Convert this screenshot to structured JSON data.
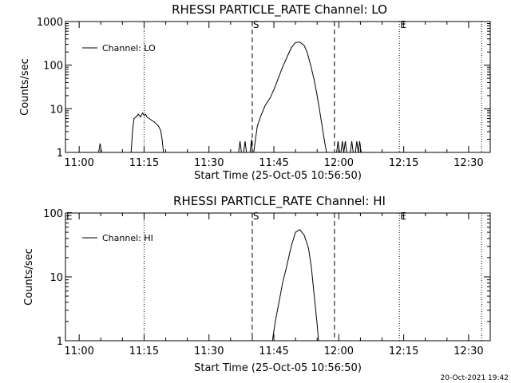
{
  "footer": {
    "timestamp": "20-Oct-2021 19:42"
  },
  "chart_data": [
    {
      "type": "line",
      "title": "RHESSI  PARTICLE_RATE  Channel: LO",
      "xlabel": "Start Time (25-Oct-05 10:56:50)",
      "ylabel": "Counts/sec",
      "yscale": "log",
      "ylim": [
        1,
        1000
      ],
      "xlim": [
        "10:56:50",
        "12:35:00"
      ],
      "xticks": [
        "11:00",
        "11:15",
        "11:30",
        "11:45",
        "12:00",
        "12:15",
        "12:30"
      ],
      "yticks": [
        "1",
        "10",
        "100",
        "1000"
      ],
      "legend": {
        "position": "top-left",
        "entries": [
          "Channel: LO"
        ]
      },
      "vlines": [
        {
          "x": "11:15",
          "style": "dotted",
          "label": ""
        },
        {
          "x": "11:40",
          "style": "dashed",
          "label": "S"
        },
        {
          "x": "11:59",
          "style": "dashed",
          "label": ""
        },
        {
          "x": "12:14",
          "style": "dotted",
          "label": "E"
        },
        {
          "x": "12:33",
          "style": "dotted",
          "label": ""
        }
      ],
      "series": [
        {
          "name": "Channel: LO",
          "segments": [
            [
              [
                "11:04:30",
                1
              ],
              [
                "11:04:50",
                1.6
              ],
              [
                "11:05:10",
                1
              ]
            ],
            [
              [
                "11:12:00",
                1
              ],
              [
                "11:12:20",
                3
              ],
              [
                "11:12:40",
                6
              ],
              [
                "11:13:10",
                6.5
              ],
              [
                "11:13:40",
                7.5
              ],
              [
                "11:14:10",
                6.5
              ],
              [
                "11:14:40",
                8
              ],
              [
                "11:15:00",
                7
              ],
              [
                "11:15:20",
                7.5
              ],
              [
                "11:15:40",
                6.5
              ],
              [
                "11:16:10",
                6
              ],
              [
                "11:16:40",
                5.5
              ],
              [
                "11:17:20",
                5
              ],
              [
                "11:17:50",
                4.5
              ],
              [
                "11:18:20",
                4
              ],
              [
                "11:18:50",
                3.2
              ],
              [
                "11:19:10",
                2
              ],
              [
                "11:19:30",
                1
              ]
            ],
            [
              [
                "11:36:50",
                1
              ],
              [
                "11:37:10",
                1.8
              ],
              [
                "11:37:30",
                1
              ]
            ],
            [
              [
                "11:38:00",
                1
              ],
              [
                "11:38:20",
                1.8
              ],
              [
                "11:38:40",
                1
              ]
            ],
            [
              [
                "11:39:30",
                1
              ],
              [
                "11:39:50",
                2
              ],
              [
                "11:40:00",
                1
              ]
            ],
            [
              [
                "11:40:20",
                1
              ],
              [
                "11:41:10",
                4
              ],
              [
                "11:42:00",
                7
              ],
              [
                "11:43:00",
                12
              ],
              [
                "11:44:10",
                18
              ],
              [
                "11:45:10",
                30
              ],
              [
                "11:46:00",
                50
              ],
              [
                "11:47:00",
                90
              ],
              [
                "11:48:00",
                150
              ],
              [
                "11:49:00",
                250
              ],
              [
                "11:50:00",
                330
              ],
              [
                "11:51:00",
                340
              ],
              [
                "11:52:00",
                280
              ],
              [
                "11:52:40",
                200
              ],
              [
                "11:53:30",
                100
              ],
              [
                "11:54:20",
                45
              ],
              [
                "11:55:00",
                20
              ],
              [
                "11:55:40",
                8
              ],
              [
                "11:56:20",
                3
              ],
              [
                "11:56:50",
                1.5
              ],
              [
                "11:57:10",
                1
              ]
            ],
            [
              [
                "11:59:30",
                1
              ],
              [
                "11:59:50",
                1.8
              ],
              [
                "12:00:10",
                1
              ]
            ],
            [
              [
                "12:00:30",
                1
              ],
              [
                "12:00:50",
                1.8
              ],
              [
                "12:01:10",
                1
              ]
            ],
            [
              [
                "12:01:10",
                1
              ],
              [
                "12:01:30",
                1.8
              ],
              [
                "12:01:50",
                1
              ]
            ],
            [
              [
                "12:02:40",
                1
              ],
              [
                "12:03:00",
                1.8
              ],
              [
                "12:03:20",
                1
              ]
            ],
            [
              [
                "12:03:50",
                1
              ],
              [
                "12:04:10",
                1.8
              ],
              [
                "12:04:30",
                1
              ]
            ],
            [
              [
                "12:04:30",
                1
              ],
              [
                "12:04:50",
                1.8
              ],
              [
                "12:05:10",
                1
              ]
            ]
          ]
        }
      ]
    },
    {
      "type": "line",
      "title": "RHESSI  PARTICLE_RATE  Channel: HI",
      "xlabel": "Start Time (25-Oct-05 10:56:50)",
      "ylabel": "Counts/sec",
      "yscale": "log",
      "ylim": [
        1,
        100
      ],
      "xlim": [
        "10:56:50",
        "12:35:00"
      ],
      "xticks": [
        "11:00",
        "11:15",
        "11:30",
        "11:45",
        "12:00",
        "12:15",
        "12:30"
      ],
      "yticks": [
        "1",
        "10",
        "100"
      ],
      "legend": {
        "position": "top-left",
        "entries": [
          "Channel: HI"
        ]
      },
      "vlines": [
        {
          "x": "10:56:50",
          "style": "solid",
          "label": "E"
        },
        {
          "x": "11:15",
          "style": "dotted",
          "label": ""
        },
        {
          "x": "11:40",
          "style": "dashed",
          "label": "S"
        },
        {
          "x": "11:59",
          "style": "dashed",
          "label": ""
        },
        {
          "x": "12:14",
          "style": "dotted",
          "label": "E"
        },
        {
          "x": "12:33",
          "style": "dotted",
          "label": ""
        }
      ],
      "series": [
        {
          "name": "Channel: HI",
          "segments": [
            [
              [
                "11:44:40",
                1
              ],
              [
                "11:45:20",
                2
              ],
              [
                "11:46:10",
                4
              ],
              [
                "11:47:00",
                8
              ],
              [
                "11:48:00",
                15
              ],
              [
                "11:49:00",
                30
              ],
              [
                "11:50:00",
                50
              ],
              [
                "11:51:00",
                55
              ],
              [
                "11:52:00",
                45
              ],
              [
                "11:53:00",
                28
              ],
              [
                "11:53:40",
                14
              ],
              [
                "11:54:20",
                5
              ],
              [
                "11:55:00",
                1.8
              ],
              [
                "11:55:20",
                1
              ]
            ]
          ]
        }
      ]
    }
  ]
}
